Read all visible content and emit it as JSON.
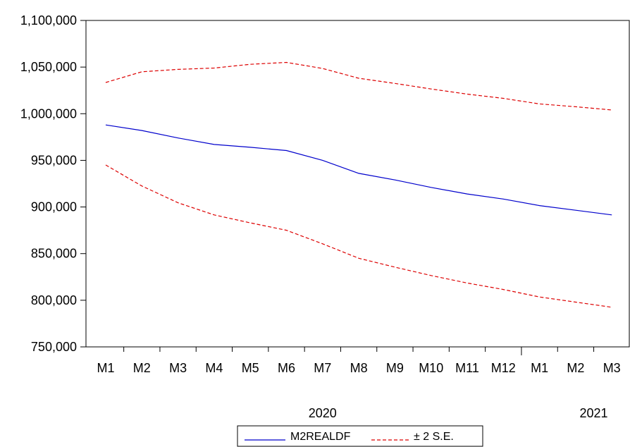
{
  "chart_data": {
    "type": "line",
    "title": "",
    "xlabel": "",
    "ylabel": "",
    "ylim": [
      750000,
      1100000
    ],
    "y_ticks": [
      750000,
      800000,
      850000,
      900000,
      950000,
      1000000,
      1050000,
      1100000
    ],
    "y_tick_labels": [
      "750,000",
      "800,000",
      "850,000",
      "900,000",
      "950,000",
      "1,000,000",
      "1,050,000",
      "1,100,000"
    ],
    "categories": [
      "M1",
      "M2",
      "M3",
      "M4",
      "M5",
      "M6",
      "M7",
      "M8",
      "M9",
      "M10",
      "M11",
      "M12",
      "M1",
      "M2",
      "M3"
    ],
    "year_labels": [
      {
        "label": "2020",
        "index": 6
      },
      {
        "label": "2021",
        "index": 13.5
      }
    ],
    "grid": false,
    "legend_position": "bottom-center",
    "series": [
      {
        "name": "M2REALDF",
        "color": "#0000cc",
        "style": "solid",
        "values": [
          988000,
          982000,
          974000,
          967000,
          964000,
          960500,
          950000,
          936000,
          929000,
          921000,
          914000,
          908500,
          901500,
          896500,
          891500
        ]
      },
      {
        "name": "± 2 S.E.",
        "color": "#dd0000",
        "style": "dashed",
        "values": [
          1033500,
          1045000,
          1047500,
          1049000,
          1053000,
          1055000,
          1048500,
          1038000,
          1032500,
          1026500,
          1021000,
          1016500,
          1010500,
          1007500,
          1004000
        ]
      },
      {
        "name": "",
        "color": "#dd0000",
        "style": "dashed",
        "values": [
          945000,
          922500,
          904500,
          891500,
          883000,
          875000,
          860500,
          845000,
          835500,
          826500,
          818500,
          811500,
          803500,
          798000,
          792500
        ]
      }
    ]
  }
}
